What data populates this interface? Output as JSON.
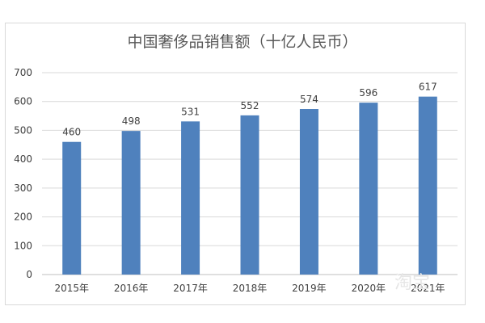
{
  "chart_data": {
    "type": "bar",
    "title": "中国奢侈品销售额（十亿人民币）",
    "categories": [
      "2015年",
      "2016年",
      "2017年",
      "2018年",
      "2019年",
      "2020年",
      "2021年"
    ],
    "values": [
      460,
      498,
      531,
      552,
      574,
      596,
      617
    ],
    "data_labels": [
      "460",
      "498",
      "531",
      "552",
      "574",
      "596",
      "617"
    ],
    "ylim": [
      0,
      700
    ],
    "yticks": [
      "0",
      "100",
      "200",
      "300",
      "400",
      "500",
      "600",
      "700"
    ],
    "grid": true,
    "legend": "none",
    "bar_color": "#4f81bd",
    "grid_color": "#d9d9d9",
    "text_color": "#404040"
  },
  "watermark": "淘宝"
}
